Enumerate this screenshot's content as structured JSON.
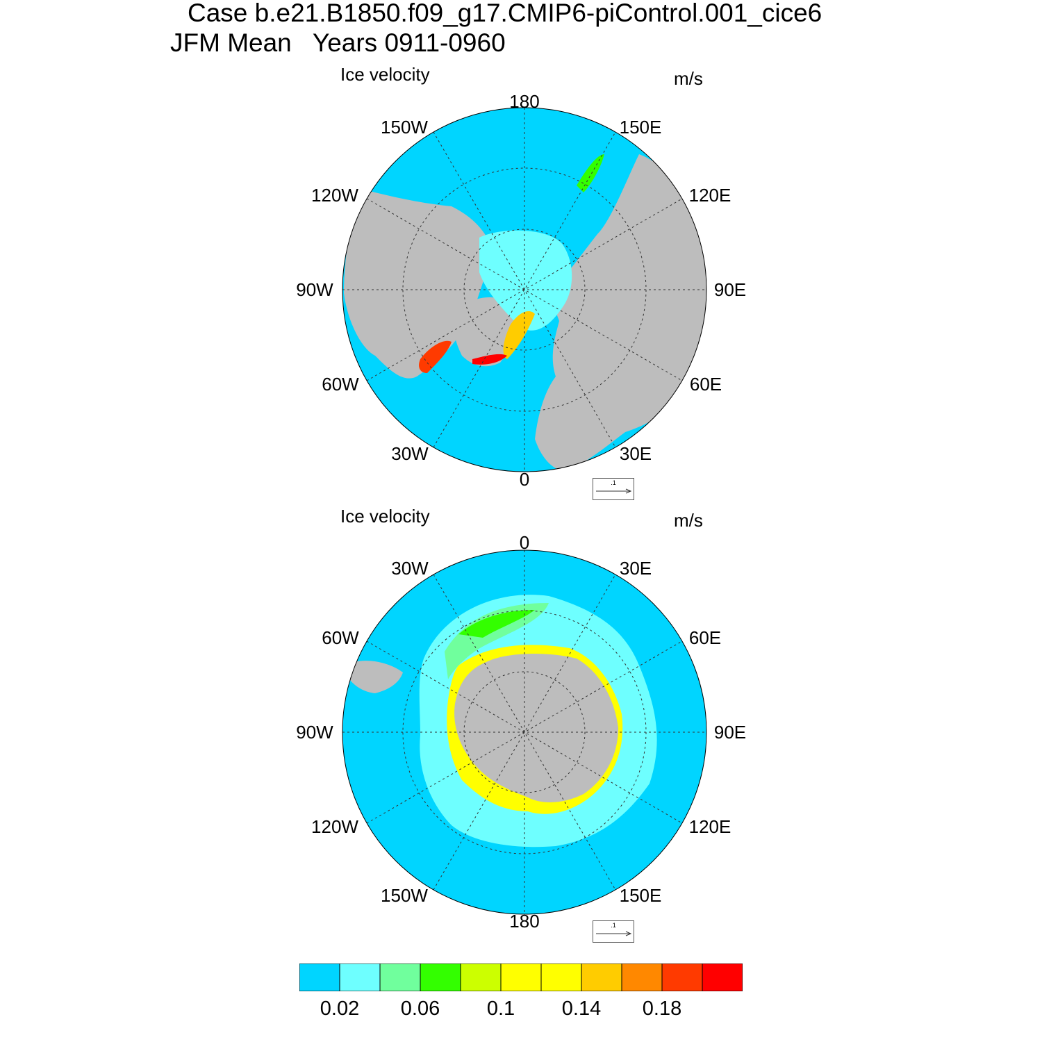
{
  "titles": {
    "line1": "Case b.e21.B1850.f09_g17.CMIP6-piControl.001_cice6",
    "line2": "JFM Mean   Years 0911-0960"
  },
  "panels": [
    {
      "id": "nh",
      "hemisphere": "north",
      "left_title": "Ice velocity",
      "units": "m/s",
      "lon_labels": [
        "180",
        "150E",
        "120E",
        "90E",
        "60E",
        "30E",
        "0",
        "30W",
        "60W",
        "90W",
        "120W",
        "150W"
      ],
      "ref_vector": ".1"
    },
    {
      "id": "sh",
      "hemisphere": "south",
      "left_title": "Ice velocity",
      "units": "m/s",
      "lon_labels": [
        "0",
        "30E",
        "60E",
        "90E",
        "120E",
        "150E",
        "180",
        "150W",
        "120W",
        "90W",
        "60W",
        "30W"
      ],
      "ref_vector": ".1"
    }
  ],
  "colorbar": {
    "colors": [
      "#00d5ff",
      "#6effff",
      "#70ff9d",
      "#33ff00",
      "#ccff00",
      "#ffff00",
      "#ffff00",
      "#ffcc00",
      "#ff8800",
      "#ff3a00",
      "#ff0000"
    ],
    "tick_labels": [
      "0.02",
      "0.06",
      "0.1",
      "0.14",
      "0.18"
    ]
  },
  "colors": {
    "ocean": "#00d5ff",
    "land": "#bdbdbd",
    "no_data": "#ffffff"
  }
}
